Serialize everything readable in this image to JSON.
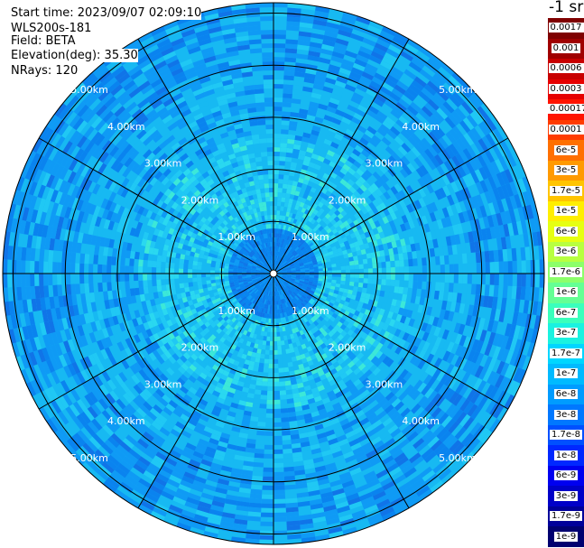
{
  "info": {
    "start_time": "Start time: 2023/09/07 02:09:10",
    "instrument": "WLS200s-181",
    "field": "Field: BETA",
    "elevation": "Elevation(deg): 35.30",
    "nrays": "NRays: 120"
  },
  "colorbar": {
    "unit": "-1 sr",
    "levels": [
      {
        "label": "0.0017",
        "color": "#7f0000"
      },
      {
        "label": "0.001",
        "color": "#a00000"
      },
      {
        "label": "0.0006",
        "color": "#c80000"
      },
      {
        "label": "0.0003",
        "color": "#e60000"
      },
      {
        "label": "0.00017",
        "color": "#ff1400"
      },
      {
        "label": "0.0001",
        "color": "#ff3c00"
      },
      {
        "label": "6e-5",
        "color": "#ff7000"
      },
      {
        "label": "3e-5",
        "color": "#ff9a00"
      },
      {
        "label": "1.7e-5",
        "color": "#ffc400"
      },
      {
        "label": "1e-5",
        "color": "#ffee00"
      },
      {
        "label": "6e-6",
        "color": "#e6ff12"
      },
      {
        "label": "3e-6",
        "color": "#b8ff40"
      },
      {
        "label": "1.7e-6",
        "color": "#8cff6a"
      },
      {
        "label": "1e-6",
        "color": "#64ff94"
      },
      {
        "label": "6e-7",
        "color": "#3affbc"
      },
      {
        "label": "3e-7",
        "color": "#1af2e0"
      },
      {
        "label": "1.7e-7",
        "color": "#00d6ff"
      },
      {
        "label": "1e-7",
        "color": "#00baff"
      },
      {
        "label": "6e-8",
        "color": "#009cff"
      },
      {
        "label": "3e-8",
        "color": "#0078ff"
      },
      {
        "label": "1.7e-8",
        "color": "#0050ff"
      },
      {
        "label": "1e-8",
        "color": "#0028ff"
      },
      {
        "label": "6e-9",
        "color": "#0000f0"
      },
      {
        "label": "3e-9",
        "color": "#0000c8"
      },
      {
        "label": "1.7e-9",
        "color": "#00009a"
      },
      {
        "label": "1e-9",
        "color": "#000070"
      }
    ]
  },
  "ppi": {
    "n_rays": 120,
    "max_range_km": 5.2,
    "range_labels": [
      "1.00km",
      "2.00km",
      "3.00km",
      "4.00km",
      "5.00km"
    ],
    "ring_km": [
      1,
      2,
      3,
      4,
      5
    ],
    "spoke_angles_deg": [
      0,
      30,
      60,
      90,
      120,
      150,
      180,
      210,
      240,
      270,
      300,
      330
    ],
    "label_bearings_deg": [
      45,
      135,
      225,
      315
    ],
    "background_color": "#17b9f2",
    "near_field_color": "#0a83ef"
  }
}
